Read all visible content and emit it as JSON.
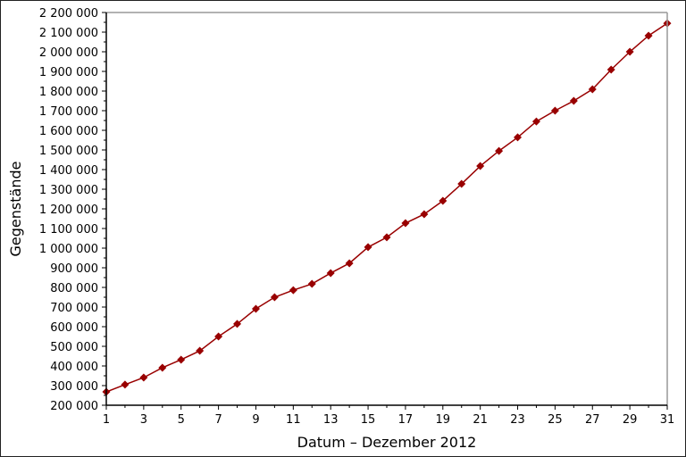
{
  "chart_data": {
    "type": "line",
    "title": "",
    "xlabel": "Datum – Dezember 2012",
    "ylabel": "Gegenstände",
    "xlim": [
      1,
      31
    ],
    "ylim": [
      200000,
      2200000
    ],
    "x_ticks": [
      "1",
      "3",
      "5",
      "7",
      "9",
      "11",
      "13",
      "15",
      "17",
      "19",
      "21",
      "23",
      "25",
      "27",
      "29",
      "31"
    ],
    "y_ticks": [
      "200 000",
      "300 000",
      "400 000",
      "500 000",
      "600 000",
      "700 000",
      "800 000",
      "900 000",
      "1 000 000",
      "1 100 000",
      "1 200 000",
      "1 300 000",
      "1 400 000",
      "1 500 000",
      "1 600 000",
      "1 700 000",
      "1 800 000",
      "1 900 000",
      "2 000 000",
      "2 100 000",
      "2 200 000"
    ],
    "grid": false,
    "series": [
      {
        "color": "#990000",
        "marker": "diamond",
        "x": [
          1,
          2,
          3,
          4,
          5,
          6,
          7,
          8,
          9,
          10,
          11,
          12,
          13,
          14,
          15,
          16,
          17,
          18,
          19,
          20,
          21,
          22,
          23,
          24,
          25,
          26,
          27,
          28,
          29,
          30,
          31
        ],
        "values": [
          268000,
          305000,
          341000,
          391000,
          432000,
          477000,
          550000,
          614000,
          691000,
          750000,
          786000,
          818000,
          873000,
          923000,
          1005000,
          1055000,
          1127000,
          1173000,
          1241000,
          1327000,
          1418000,
          1495000,
          1564000,
          1645000,
          1700000,
          1750000,
          1809000,
          1909000,
          2000000,
          2082000,
          2145000
        ]
      }
    ]
  }
}
